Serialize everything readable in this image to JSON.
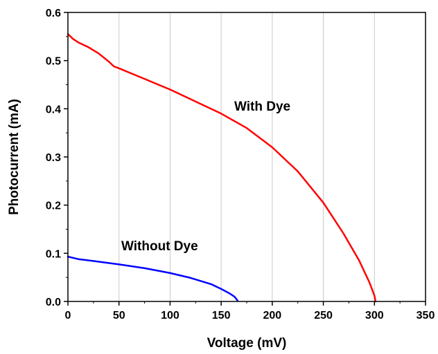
{
  "chart_data": {
    "type": "line",
    "title": "",
    "xlabel": "Voltage (mV)",
    "ylabel": "Photocurrent (mA)",
    "xlim": [
      0,
      350
    ],
    "ylim": [
      0,
      0.6
    ],
    "xticks": [
      "0",
      "50",
      "100",
      "150",
      "200",
      "250",
      "300",
      "350"
    ],
    "yticks": [
      "0.0",
      "0.1",
      "0.2",
      "0.3",
      "0.4",
      "0.5",
      "0.6"
    ],
    "grid": "vertical",
    "legend": "none",
    "series": [
      {
        "label": "With Dye",
        "color": "#ff0000",
        "x": [
          0,
          5,
          10,
          20,
          30,
          40,
          45,
          50,
          75,
          100,
          125,
          150,
          175,
          200,
          225,
          250,
          270,
          285,
          295,
          300,
          301
        ],
        "y": [
          0.555,
          0.545,
          0.538,
          0.528,
          0.515,
          0.498,
          0.488,
          0.484,
          0.462,
          0.44,
          0.415,
          0.39,
          0.36,
          0.32,
          0.27,
          0.205,
          0.14,
          0.085,
          0.04,
          0.012,
          0.0
        ]
      },
      {
        "label": "Without Dye",
        "color": "#0000ff",
        "x": [
          0,
          10,
          25,
          50,
          75,
          100,
          120,
          140,
          150,
          158,
          163,
          166
        ],
        "y": [
          0.093,
          0.088,
          0.084,
          0.077,
          0.069,
          0.059,
          0.049,
          0.036,
          0.026,
          0.017,
          0.01,
          0.002
        ]
      }
    ]
  }
}
